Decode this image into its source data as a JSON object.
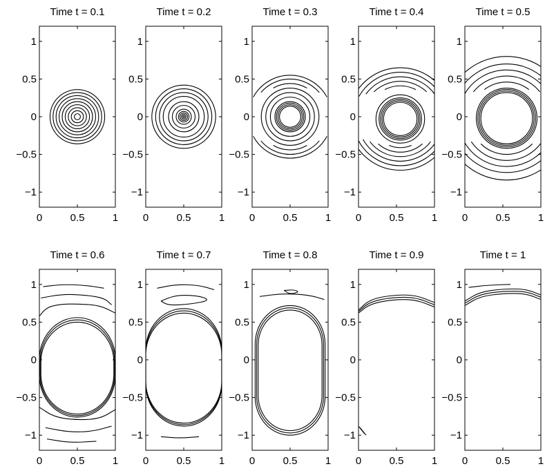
{
  "chart_data": {
    "type": "contour",
    "panel_grid": {
      "rows": 2,
      "columns": 5
    },
    "x_axis": {
      "range": [
        0,
        1
      ],
      "ticks": [
        0,
        0.5,
        1
      ],
      "tick_labels": [
        "0",
        "0.5",
        "1"
      ]
    },
    "y_axis": {
      "range": [
        -1.2,
        1.2
      ],
      "ticks": [
        -1,
        -0.5,
        0,
        0.5,
        1
      ],
      "tick_labels": [
        "−1",
        "−0.5",
        "0",
        "0.5",
        "1"
      ]
    },
    "grid": false,
    "line_color": "#000000",
    "panels": [
      {
        "title": "Time t = 0.1",
        "t": 0.1,
        "center": [
          0.5,
          0
        ],
        "circle_radii": [
          0.04,
          0.08,
          0.12,
          0.16,
          0.2,
          0.24,
          0.28,
          0.32,
          0.36
        ],
        "arcs": []
      },
      {
        "title": "Time t = 0.2",
        "t": 0.2,
        "center": [
          0.5,
          0
        ],
        "circle_radii": [
          0.012,
          0.03,
          0.05,
          0.07,
          0.1,
          0.15,
          0.2,
          0.27,
          0.32,
          0.37,
          0.42
        ],
        "arcs": []
      },
      {
        "title": "Time t = 0.3",
        "t": 0.3,
        "center": [
          0.5,
          0
        ],
        "circle_radii": [
          0.14,
          0.16,
          0.18,
          0.2,
          0.26,
          0.32,
          0.38
        ],
        "arcs": [
          {
            "r": 0.44,
            "y": [
              -0.38,
              0.38
            ]
          },
          {
            "r": 0.5,
            "y": [
              -0.32,
              0.32
            ]
          },
          {
            "r": 0.55,
            "y": [
              -0.26,
              0.26
            ]
          }
        ]
      },
      {
        "title": "Time t = 0.4",
        "t": 0.4,
        "center": [
          0.55,
          -0.03
        ],
        "circle_radii": [
          0.22,
          0.24,
          0.26,
          0.28,
          0.32
        ],
        "arcs": [
          {
            "r": 0.38,
            "y": [
              -0.38,
              0.38
            ]
          },
          {
            "r": 0.44,
            "y": [
              -0.36,
              0.36
            ]
          },
          {
            "r": 0.5,
            "y": [
              -0.33,
              0.33
            ]
          },
          {
            "r": 0.56,
            "y": [
              -0.3,
              0.3
            ]
          },
          {
            "r": 0.62,
            "y": [
              -0.27,
              0.27
            ]
          },
          {
            "r": 0.68,
            "y": [
              -0.24,
              0.24
            ]
          }
        ]
      },
      {
        "title": "Time t = 0.5",
        "t": 0.5,
        "center": [
          0.55,
          -0.02
        ],
        "circle_radii": [
          0.34,
          0.36,
          0.38,
          0.4
        ],
        "arcs": [
          {
            "r": 0.48,
            "y": [
              -0.36,
              0.36
            ]
          },
          {
            "r": 0.56,
            "y": [
              -0.33,
              0.33
            ]
          },
          {
            "r": 0.64,
            "y": [
              -0.3,
              0.3
            ]
          },
          {
            "r": 0.72,
            "y": [
              -0.26,
              0.26
            ]
          },
          {
            "r": 0.82,
            "y": [
              -0.2,
              0.2
            ]
          }
        ]
      },
      {
        "title": "Time t = 0.6",
        "t": 0.6,
        "center": [
          0.55,
          0
        ],
        "circle_radii": [],
        "rounded_boxes": [
          {
            "top": 0.5,
            "bottom": -0.72,
            "margin": 0.02
          },
          {
            "top": 0.53,
            "bottom": -0.74,
            "margin": 0.01
          },
          {
            "top": 0.56,
            "bottom": -0.76,
            "margin": 0.0
          }
        ],
        "curves": [
          [
            [
              0.0,
              0.58
            ],
            [
              0.1,
              0.7
            ],
            [
              0.3,
              0.74
            ],
            [
              0.55,
              0.74
            ],
            [
              0.8,
              0.72
            ],
            [
              1.0,
              0.62
            ]
          ],
          [
            [
              0.02,
              0.82
            ],
            [
              0.3,
              0.87
            ],
            [
              0.6,
              0.86
            ],
            [
              0.85,
              0.82
            ],
            [
              0.95,
              0.73
            ]
          ],
          [
            [
              0.05,
              0.97
            ],
            [
              0.3,
              1.0
            ],
            [
              0.6,
              0.99
            ],
            [
              0.85,
              0.95
            ]
          ],
          [
            [
              0.0,
              -0.63
            ],
            [
              0.2,
              -0.76
            ],
            [
              0.5,
              -0.8
            ],
            [
              0.8,
              -0.78
            ],
            [
              1.0,
              -0.66
            ]
          ],
          [
            [
              0.08,
              -0.9
            ],
            [
              0.4,
              -0.96
            ],
            [
              0.7,
              -0.95
            ],
            [
              0.95,
              -0.88
            ]
          ],
          [
            [
              0.1,
              -1.05
            ],
            [
              0.4,
              -1.1
            ],
            [
              0.75,
              -1.08
            ]
          ]
        ]
      },
      {
        "title": "Time t = 0.7",
        "t": 0.7,
        "center": [
          0.55,
          0
        ],
        "circle_radii": [],
        "rounded_boxes": [
          {
            "top": 0.62,
            "bottom": -0.84,
            "margin": 0.0
          },
          {
            "top": 0.65,
            "bottom": -0.86,
            "margin": 0.0
          },
          {
            "top": 0.68,
            "bottom": -0.88,
            "margin": 0.0
          }
        ],
        "curves": [
          [
            [
              0.2,
              0.78
            ],
            [
              0.4,
              0.86
            ],
            [
              0.7,
              0.85
            ],
            [
              0.85,
              0.79
            ],
            [
              0.6,
              0.74
            ],
            [
              0.3,
              0.72
            ],
            [
              0.2,
              0.78
            ]
          ],
          [
            [
              0.15,
              0.95
            ],
            [
              0.4,
              1.0
            ],
            [
              0.7,
              0.99
            ],
            [
              0.9,
              0.93
            ]
          ],
          [
            [
              0.2,
              -1.02
            ],
            [
              0.45,
              -1.04
            ],
            [
              0.7,
              -1.02
            ]
          ]
        ]
      },
      {
        "title": "Time t = 0.8",
        "t": 0.8,
        "center": [
          0.55,
          0
        ],
        "circle_radii": [],
        "rounded_boxes": [
          {
            "top": 0.66,
            "bottom": -0.94,
            "margin": 0.08
          },
          {
            "top": 0.69,
            "bottom": -0.97,
            "margin": 0.06
          },
          {
            "top": 0.72,
            "bottom": -1.0,
            "margin": 0.04
          }
        ],
        "curves": [
          [
            [
              0.42,
              0.92
            ],
            [
              0.55,
              0.93
            ],
            [
              0.62,
              0.9
            ],
            [
              0.5,
              0.87
            ],
            [
              0.42,
              0.92
            ]
          ],
          [
            [
              0.1,
              0.84
            ],
            [
              0.4,
              0.88
            ],
            [
              0.75,
              0.86
            ],
            [
              0.95,
              0.8
            ]
          ]
        ]
      },
      {
        "title": "Time t = 0.9",
        "t": 0.9,
        "center": [
          0.55,
          0
        ],
        "circle_radii": [],
        "rounded_boxes": [],
        "curves": [
          [
            [
              0.0,
              0.62
            ],
            [
              0.15,
              0.74
            ],
            [
              0.45,
              0.8
            ],
            [
              0.75,
              0.8
            ],
            [
              1.0,
              0.7
            ]
          ],
          [
            [
              0.0,
              0.64
            ],
            [
              0.15,
              0.77
            ],
            [
              0.45,
              0.83
            ],
            [
              0.75,
              0.83
            ],
            [
              1.0,
              0.73
            ]
          ],
          [
            [
              0.0,
              0.66
            ],
            [
              0.15,
              0.8
            ],
            [
              0.45,
              0.86
            ],
            [
              0.75,
              0.86
            ],
            [
              1.0,
              0.76
            ]
          ],
          [
            [
              0.0,
              -0.88
            ],
            [
              0.08,
              -0.98
            ]
          ],
          [
            [
              0.02,
              -0.9
            ],
            [
              0.1,
              -1.0
            ]
          ]
        ]
      },
      {
        "title": "Time t = 1",
        "t": 1.0,
        "center": [
          0.55,
          0
        ],
        "circle_radii": [],
        "rounded_boxes": [],
        "curves": [
          [
            [
              0.0,
              0.72
            ],
            [
              0.2,
              0.84
            ],
            [
              0.5,
              0.88
            ],
            [
              0.8,
              0.88
            ],
            [
              1.0,
              0.8
            ]
          ],
          [
            [
              0.0,
              0.75
            ],
            [
              0.2,
              0.87
            ],
            [
              0.5,
              0.91
            ],
            [
              0.8,
              0.91
            ],
            [
              1.0,
              0.83
            ]
          ],
          [
            [
              0.0,
              0.78
            ],
            [
              0.2,
              0.9
            ],
            [
              0.5,
              0.94
            ],
            [
              0.8,
              0.94
            ],
            [
              1.0,
              0.86
            ]
          ],
          [
            [
              0.05,
              0.96
            ],
            [
              0.3,
              0.99
            ],
            [
              0.6,
              1.0
            ]
          ]
        ]
      }
    ]
  }
}
